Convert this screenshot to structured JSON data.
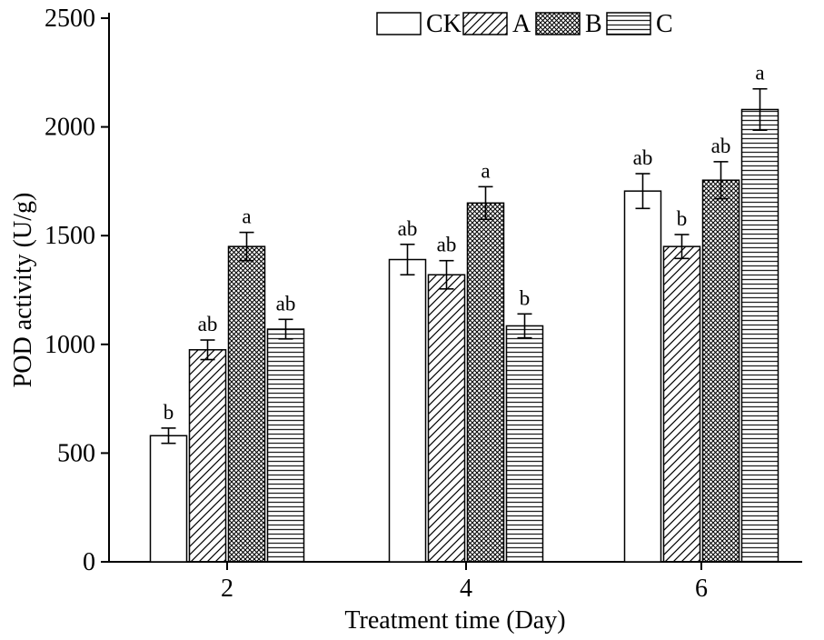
{
  "chart_data": {
    "type": "bar",
    "title": "",
    "xlabel": "Treatment time (Day)",
    "ylabel": "POD activity (U/g)",
    "categories": [
      "2",
      "4",
      "6"
    ],
    "ylim": [
      0,
      2500
    ],
    "yticks": [
      0,
      500,
      1000,
      1500,
      2000,
      2500
    ],
    "grid": false,
    "legend_position": "top-center",
    "colors": {
      "bar_fill": "#ffffff",
      "stroke": "#000000",
      "background": "#ffffff"
    },
    "series": [
      {
        "name": "CK",
        "pattern": "solid-white",
        "values": [
          580,
          1390,
          1705
        ],
        "errors": [
          35,
          70,
          80
        ],
        "sig_labels": [
          "b",
          "ab",
          "ab"
        ]
      },
      {
        "name": "A",
        "pattern": "diagonal-hatch",
        "values": [
          975,
          1320,
          1450
        ],
        "errors": [
          45,
          65,
          55
        ],
        "sig_labels": [
          "ab",
          "ab",
          "b"
        ]
      },
      {
        "name": "B",
        "pattern": "crosshatch",
        "values": [
          1450,
          1650,
          1755
        ],
        "errors": [
          65,
          75,
          85
        ],
        "sig_labels": [
          "a",
          "a",
          "ab"
        ]
      },
      {
        "name": "C",
        "pattern": "horizontal-lines",
        "values": [
          1070,
          1085,
          2080
        ],
        "errors": [
          45,
          55,
          95
        ],
        "sig_labels": [
          "ab",
          "b",
          "a"
        ]
      }
    ]
  }
}
